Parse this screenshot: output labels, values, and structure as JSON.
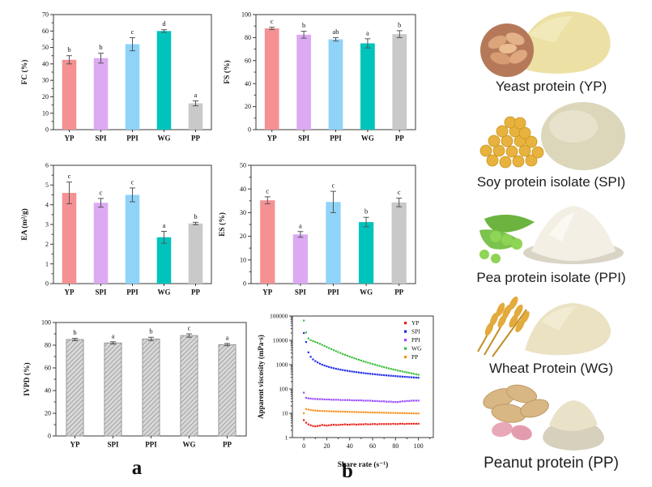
{
  "figure": {
    "panel_a_label": "a",
    "panel_b_label": "b"
  },
  "colors": {
    "bar_palette": [
      "#f59193",
      "#dcaaf2",
      "#8fd3f8",
      "#00c4bc",
      "#c9c9c9"
    ],
    "hatch_fill": "#d8d8d8",
    "hatch_line": "#808080",
    "axis": "#3a3a3a",
    "scatter": {
      "YP": "#e8231a",
      "SPI": "#1f2de6",
      "PPI": "#9b4dff",
      "WG": "#3dbf3d",
      "PP": "#f59120"
    }
  },
  "proteins": [
    {
      "code": "YP",
      "label": "Yeast protein (YP)"
    },
    {
      "code": "SPI",
      "label": "Soy protein isolate (SPI)"
    },
    {
      "code": "PPI",
      "label": "Pea protein isolate (PPI)"
    },
    {
      "code": "WG",
      "label": "Wheat Protein (WG)"
    },
    {
      "code": "PP",
      "label": "Peanut protein (PP)"
    }
  ],
  "chart_data": [
    {
      "id": "fc",
      "type": "bar",
      "title": "",
      "xlabel": "",
      "ylabel": "FC (%)",
      "ylim": [
        0,
        70
      ],
      "ytick": 10,
      "categories": [
        "YP",
        "SPI",
        "PPI",
        "WG",
        "PP"
      ],
      "values": [
        42.5,
        43.5,
        52,
        60,
        16
      ],
      "errors": [
        2.5,
        3,
        4,
        0.8,
        1.5
      ],
      "letters": [
        "b",
        "b",
        "c",
        "d",
        "a"
      ],
      "bar_colors": [
        "#f59193",
        "#dcaaf2",
        "#8fd3f8",
        "#00c4bc",
        "#c9c9c9"
      ]
    },
    {
      "id": "fs",
      "type": "bar",
      "title": "",
      "xlabel": "",
      "ylabel": "FS (%)",
      "ylim": [
        0,
        100
      ],
      "ytick": 20,
      "categories": [
        "YP",
        "SPI",
        "PPI",
        "WG",
        "PP"
      ],
      "values": [
        88,
        82.5,
        78.5,
        75,
        83
      ],
      "errors": [
        1,
        3,
        1.5,
        4,
        3
      ],
      "letters": [
        "c",
        "b",
        "ab",
        "a",
        "b"
      ],
      "bar_colors": [
        "#f59193",
        "#dcaaf2",
        "#8fd3f8",
        "#00c4bc",
        "#c9c9c9"
      ]
    },
    {
      "id": "ea",
      "type": "bar",
      "title": "",
      "xlabel": "",
      "ylabel": "EA (m²/g)",
      "ylim": [
        0,
        6
      ],
      "ytick": 1,
      "categories": [
        "YP",
        "SPI",
        "PPI",
        "WG",
        "PP"
      ],
      "values": [
        4.6,
        4.1,
        4.5,
        2.35,
        3.05
      ],
      "errors": [
        0.55,
        0.22,
        0.35,
        0.3,
        0.06
      ],
      "letters": [
        "c",
        "c",
        "c",
        "a",
        "b"
      ],
      "bar_colors": [
        "#f59193",
        "#dcaaf2",
        "#8fd3f8",
        "#00c4bc",
        "#c9c9c9"
      ]
    },
    {
      "id": "es",
      "type": "bar",
      "title": "",
      "xlabel": "",
      "ylabel": "ES (%)",
      "ylim": [
        0,
        50
      ],
      "ytick": 10,
      "categories": [
        "YP",
        "SPI",
        "PPI",
        "WG",
        "PP"
      ],
      "values": [
        35.2,
        20.8,
        34.5,
        26,
        34.3
      ],
      "errors": [
        1.5,
        1.2,
        4.5,
        2,
        1.8
      ],
      "letters": [
        "c",
        "a",
        "c",
        "b",
        "c"
      ],
      "bar_colors": [
        "#f59193",
        "#dcaaf2",
        "#8fd3f8",
        "#00c4bc",
        "#c9c9c9"
      ]
    },
    {
      "id": "ivpd",
      "type": "bar",
      "title": "",
      "xlabel": "",
      "ylabel": "IVPD (%)",
      "ylim": [
        0,
        100
      ],
      "ytick": 20,
      "hatch": true,
      "categories": [
        "YP",
        "SPI",
        "PPI",
        "WG",
        "PP"
      ],
      "values": [
        85,
        82,
        85.5,
        88.5,
        80.5
      ],
      "errors": [
        1,
        1,
        1.5,
        1.5,
        1
      ],
      "letters": [
        "b",
        "a",
        "b",
        "c",
        "a"
      ],
      "bar_colors": [
        "#d8d8d8"
      ]
    },
    {
      "id": "viscosity",
      "type": "scatter",
      "title": "",
      "xlabel": "Share rate (s⁻¹)",
      "ylabel": "Apparent viscosity (mPa·s)",
      "xlim": [
        -10,
        113
      ],
      "xticks": [
        0,
        20,
        40,
        60,
        80,
        100
      ],
      "ylog": true,
      "ylim": [
        1,
        100000
      ],
      "yticks": [
        1,
        10,
        100,
        1000,
        10000,
        100000
      ],
      "legend_position": "top-right",
      "x": [
        0,
        2,
        4,
        6,
        8,
        10,
        12,
        14,
        16,
        18,
        20,
        22,
        24,
        26,
        28,
        30,
        32,
        34,
        36,
        38,
        40,
        42,
        44,
        46,
        48,
        50,
        52,
        54,
        56,
        58,
        60,
        62,
        64,
        66,
        68,
        70,
        72,
        74,
        76,
        78,
        80,
        82,
        84,
        86,
        88,
        90,
        92,
        94,
        96,
        98,
        100
      ],
      "series": [
        {
          "name": "YP",
          "color": "#e8231a",
          "values": [
            5.2,
            4.1,
            3.5,
            3.2,
            3.0,
            2.9,
            3.0,
            3.1,
            3.3,
            3.2,
            3.1,
            3.2,
            3.3,
            3.4,
            3.3,
            3.3,
            3.4,
            3.4,
            3.5,
            3.4,
            3.4,
            3.5,
            3.5,
            3.4,
            3.5,
            3.5,
            3.5,
            3.6,
            3.5,
            3.5,
            3.6,
            3.6,
            3.5,
            3.6,
            3.6,
            3.6,
            3.6,
            3.6,
            3.6,
            3.7,
            3.6,
            3.6,
            3.7,
            3.7,
            3.6,
            3.7,
            3.7,
            3.7,
            3.7,
            3.7,
            3.7
          ]
        },
        {
          "name": "SPI",
          "color": "#1f2de6",
          "values": [
            20000,
            8500,
            3200,
            2100,
            1650,
            1400,
            1230,
            1100,
            1000,
            920,
            855,
            800,
            755,
            715,
            680,
            650,
            622,
            598,
            576,
            556,
            538,
            521,
            505,
            490,
            476,
            463,
            451,
            440,
            429,
            419,
            410,
            401,
            392,
            384,
            376,
            369,
            362,
            355,
            349,
            343,
            337,
            331,
            326,
            321,
            316,
            311,
            306,
            302,
            297,
            293,
            289
          ]
        },
        {
          "name": "PPI",
          "color": "#9b4dff",
          "values": [
            70,
            43,
            41,
            40,
            39,
            39,
            38,
            38,
            38,
            37,
            37,
            37,
            36,
            36,
            36,
            36,
            35,
            35,
            35,
            35,
            35,
            34,
            34,
            34,
            34,
            34,
            33,
            33,
            33,
            33,
            32,
            32,
            32,
            31,
            31,
            31,
            30,
            30,
            30,
            29,
            29,
            29,
            30,
            31,
            31,
            32,
            32,
            33,
            33,
            33,
            33
          ]
        },
        {
          "name": "WG",
          "color": "#3dbf3d",
          "values": [
            65000,
            21000,
            12000,
            10200,
            9300,
            8600,
            7900,
            7200,
            6500,
            5900,
            5300,
            4800,
            4350,
            3950,
            3600,
            3280,
            3000,
            2750,
            2530,
            2330,
            2150,
            1990,
            1840,
            1710,
            1590,
            1480,
            1380,
            1290,
            1210,
            1130,
            1060,
            1000,
            940,
            885,
            835,
            790,
            745,
            705,
            670,
            635,
            605,
            575,
            550,
            525,
            500,
            480,
            460,
            440,
            420,
            400,
            385
          ]
        },
        {
          "name": "PP",
          "color": "#f59120",
          "values": [
            10,
            15,
            14.2,
            13.6,
            13.2,
            12.9,
            12.7,
            12.5,
            12.4,
            12.3,
            12.2,
            12.1,
            12.0,
            11.9,
            11.8,
            11.8,
            11.7,
            11.6,
            11.5,
            11.5,
            11.4,
            11.3,
            11.3,
            11.2,
            11.1,
            11.1,
            11.0,
            11.0,
            10.9,
            10.8,
            10.8,
            10.7,
            10.7,
            10.6,
            10.6,
            10.5,
            10.5,
            10.4,
            10.4,
            10.3,
            10.3,
            10.2,
            10.2,
            10.1,
            10.1,
            10.0,
            10.0,
            9.9,
            9.9,
            9.8,
            9.8
          ]
        }
      ]
    }
  ]
}
